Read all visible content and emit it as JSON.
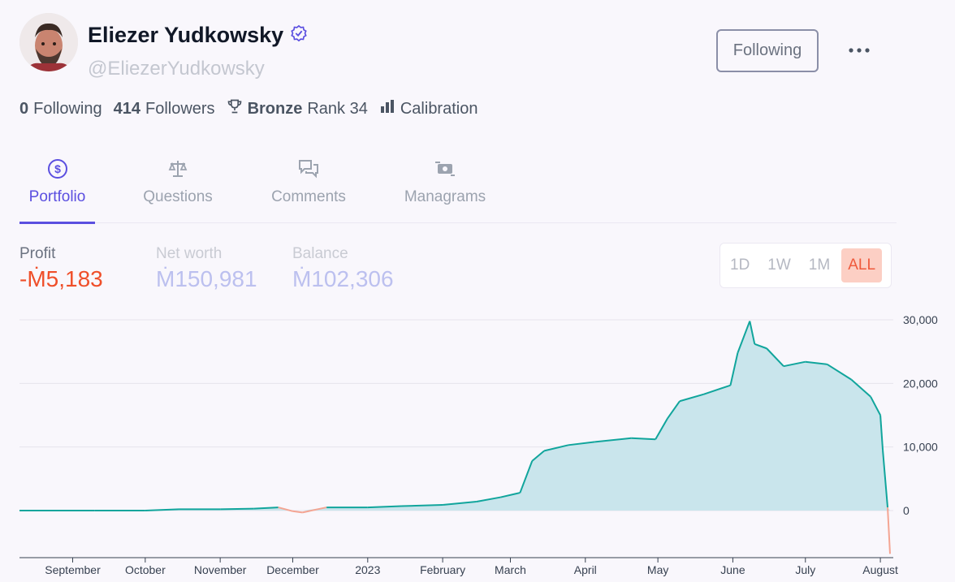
{
  "profile": {
    "name": "Eliezer Yudkowsky",
    "handle": "@EliezerYudkowsky",
    "follow_label": "Following",
    "verified_icon": "verified-badge-icon",
    "accent": "#5b4fe0"
  },
  "stats": {
    "following_count": "0",
    "following_label": "Following",
    "followers_count": "414",
    "followers_label": "Followers",
    "league": "Bronze",
    "rank": "Rank 34",
    "calibration_label": "Calibration"
  },
  "tabs": [
    {
      "label": "Portfolio",
      "icon": "dollar-circle-icon",
      "active": true
    },
    {
      "label": "Questions",
      "icon": "scale-icon",
      "active": false
    },
    {
      "label": "Comments",
      "icon": "chat-bubbles-icon",
      "active": false
    },
    {
      "label": "Managrams",
      "icon": "cash-transfer-icon",
      "active": false
    }
  ],
  "metrics": {
    "profit_label": "Profit",
    "profit_value": "-Ṁ5,183",
    "networth_label": "Net worth",
    "networth_value": "Ṁ150,981",
    "balance_label": "Balance",
    "balance_value": "Ṁ102,306"
  },
  "range": {
    "options": [
      "1D",
      "1W",
      "1M",
      "ALL"
    ],
    "selected": "ALL"
  },
  "chart_data": {
    "type": "area",
    "title": "",
    "xlabel": "",
    "ylabel": "",
    "ylim": [
      -7000,
      31000
    ],
    "yticks": [
      0,
      10000,
      20000,
      30000
    ],
    "ytick_labels": [
      "0",
      "10,000",
      "20,000",
      "30,000"
    ],
    "xticks": [
      "September",
      "October",
      "November",
      "December",
      "2023",
      "February",
      "March",
      "April",
      "May",
      "June",
      "July",
      "August"
    ],
    "positive_color": "#11a59c",
    "positive_fill": "#c9e5ec",
    "negative_color": "#f4a593",
    "grid": true,
    "series": [
      {
        "x": [
          "2022-08-10",
          "2022-09-10",
          "2022-10-01",
          "2022-10-15",
          "2022-11-01",
          "2022-11-15",
          "2022-11-25",
          "2022-12-01",
          "2022-12-05",
          "2022-12-15",
          "2023-01-01",
          "2023-01-15",
          "2023-02-01",
          "2023-02-15",
          "2023-02-25",
          "2023-03-05",
          "2023-03-10",
          "2023-03-15",
          "2023-03-25",
          "2023-04-05",
          "2023-04-20",
          "2023-04-30",
          "2023-05-05",
          "2023-05-10",
          "2023-05-20",
          "2023-05-31",
          "2023-06-03",
          "2023-06-08",
          "2023-06-10",
          "2023-06-15",
          "2023-06-22",
          "2023-07-01",
          "2023-07-10",
          "2023-07-20",
          "2023-07-28",
          "2023-08-01",
          "2023-08-02",
          "2023-08-04",
          "2023-08-05"
        ],
        "y": [
          0,
          0,
          0,
          200,
          200,
          300,
          500,
          -100,
          -300,
          500,
          500,
          700,
          900,
          1400,
          2100,
          2800,
          7800,
          9400,
          10300,
          10800,
          11400,
          11200,
          14500,
          17200,
          18300,
          19700,
          24800,
          29800,
          26200,
          25500,
          22700,
          23400,
          23000,
          20600,
          17900,
          15000,
          9500,
          500,
          -6800
        ]
      }
    ]
  }
}
